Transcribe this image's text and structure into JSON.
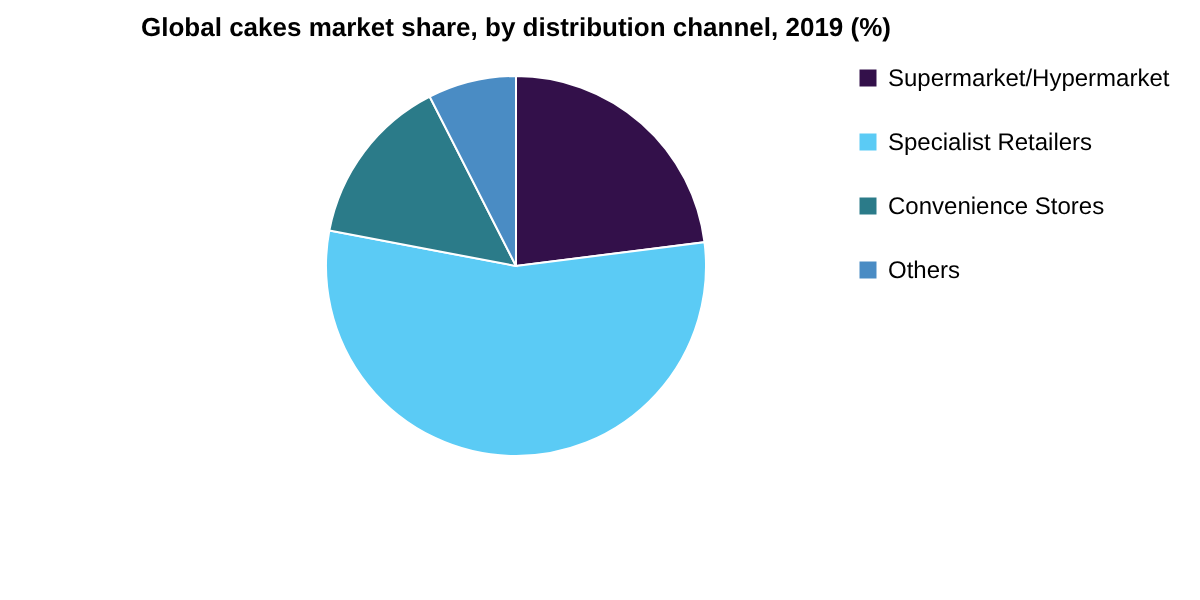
{
  "chart_data": {
    "type": "pie",
    "title": "Global cakes market share, by distribution channel, 2019 (%)",
    "categories": [
      "Supermarket/Hypermarket",
      "Specialist Retailers",
      "Convenience Stores",
      "Others"
    ],
    "values": [
      23,
      55,
      14.5,
      7.5
    ],
    "colors": [
      "#33104a",
      "#5bcbf5",
      "#2b7b89",
      "#4a8cc4"
    ],
    "legend": "right"
  }
}
